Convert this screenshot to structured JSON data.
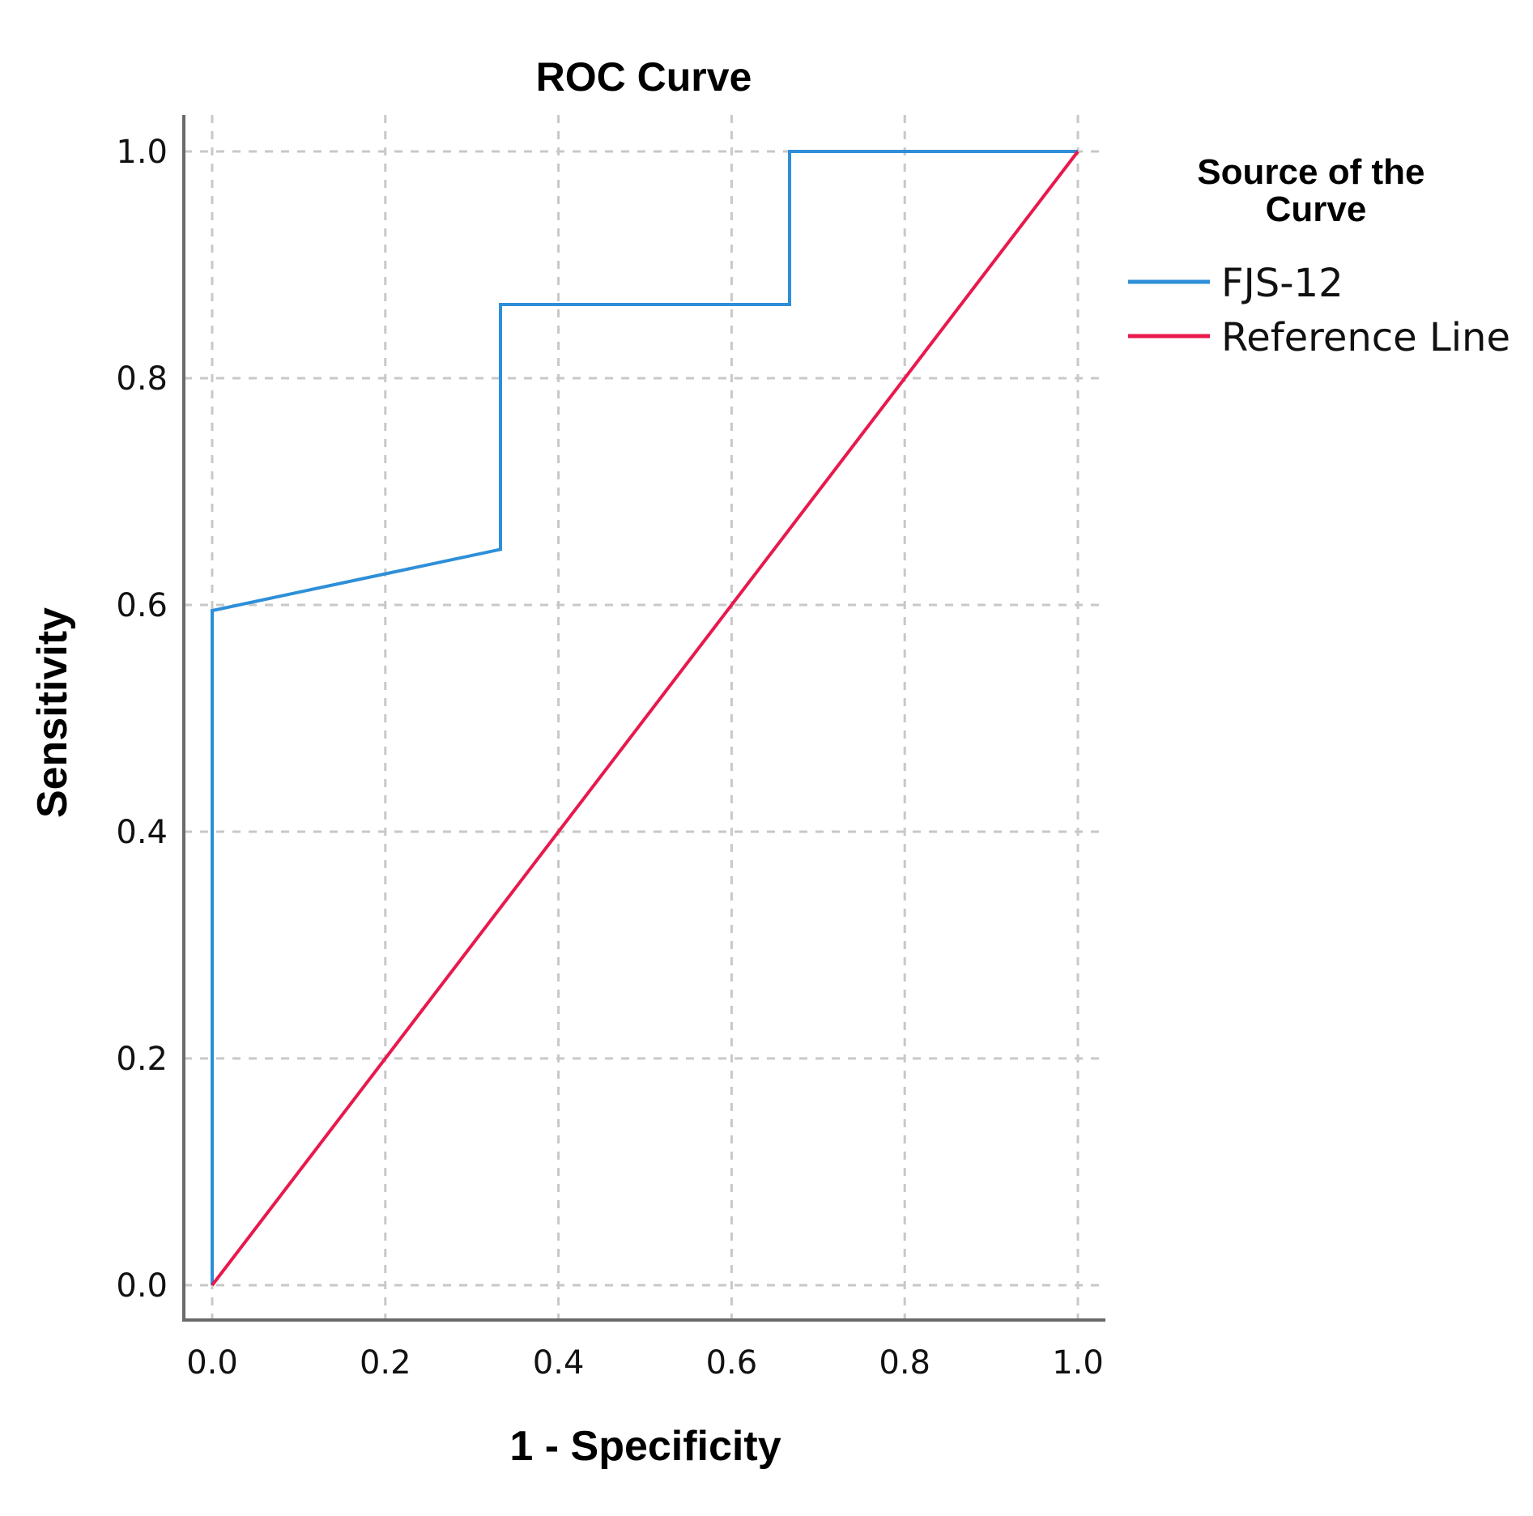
{
  "chart_data": {
    "type": "line",
    "title": "ROC Curve",
    "xlabel": "1 - Specificity",
    "ylabel": "Sensitivity",
    "xlim": [
      0.0,
      1.0
    ],
    "ylim": [
      0.0,
      1.0
    ],
    "grid": true,
    "x_ticks": [
      "0.0",
      "0.2",
      "0.4",
      "0.6",
      "0.8",
      "1.0"
    ],
    "y_ticks": [
      "0.0",
      "0.2",
      "0.4",
      "0.6",
      "0.8",
      "1.0"
    ],
    "legend": {
      "title": "Source of the Curve",
      "title_lines": [
        "Source of the",
        "Curve"
      ],
      "placement": "right"
    },
    "series": [
      {
        "name": "FJS-12",
        "color": "#2e8fd8",
        "x": [
          0.0,
          0.0,
          0.333,
          0.333,
          0.667,
          0.667,
          1.0
        ],
        "y": [
          0.0,
          0.595,
          0.649,
          0.865,
          0.865,
          1.0,
          1.0
        ]
      },
      {
        "name": "Reference Line",
        "color": "#e8194c",
        "x": [
          0.0,
          1.0
        ],
        "y": [
          0.0,
          1.0
        ]
      }
    ]
  }
}
